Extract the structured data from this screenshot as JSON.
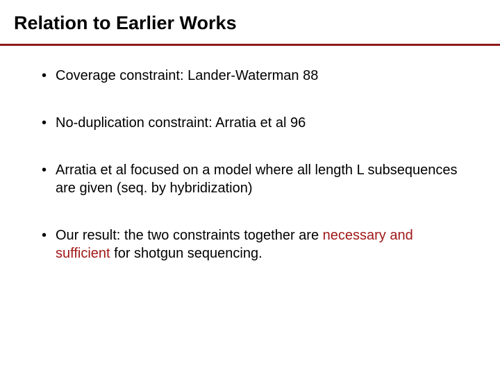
{
  "slide": {
    "title": "Relation to Earlier Works",
    "background_color": "#ffffff",
    "text_color": "#000000",
    "highlight_color": "#a01818",
    "divider_color": "#8b1a1a",
    "title_fontsize": 27,
    "body_fontsize": 20,
    "bullets": [
      {
        "pre": "Coverage constraint: Lander-Waterman 88"
      },
      {
        "pre": "No-duplication constraint: Arratia et al 96"
      },
      {
        "pre": "Arratia et al focused on a model where all length L subsequences are given (seq. by hybridization)"
      },
      {
        "pre": "Our result: the two constraints together are ",
        "hl": "necessary and sufficient",
        "post": " for shotgun sequencing."
      }
    ]
  }
}
